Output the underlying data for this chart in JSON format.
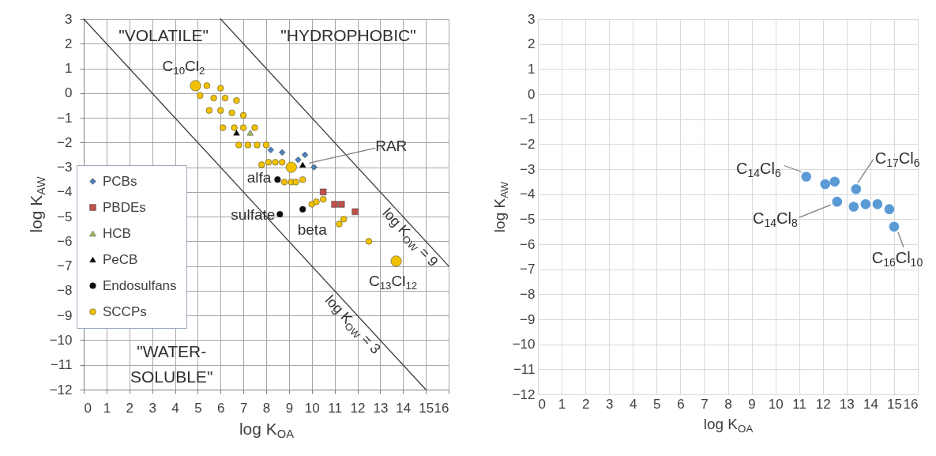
{
  "chart_data": [
    {
      "type": "scatter",
      "xlabel": "log K$_{OA}$",
      "ylabel": "log K$_{AW}$",
      "xlim": [
        0,
        16
      ],
      "ylim": [
        -12,
        3
      ],
      "xticks": [
        0,
        1,
        2,
        3,
        4,
        5,
        6,
        7,
        8,
        9,
        10,
        11,
        12,
        13,
        14,
        15,
        16
      ],
      "yticks": [
        -12,
        -11,
        -10,
        -9,
        -8,
        -7,
        -6,
        -5,
        -4,
        -3,
        -2,
        -1,
        0,
        1,
        2,
        3
      ],
      "grid": true,
      "legend": "left",
      "annotations": [
        "\"VOLATILE\"",
        "\"HYDROPHOBIC\"",
        "\"WATER-\nSOLUBLE\"",
        {
          "text": "C$_{10}$Cl$_{2}$",
          "x": 4.9,
          "y": 0.3
        },
        {
          "text": "RAR",
          "x": 9.6,
          "y": -2.9
        },
        {
          "text": "alfa",
          "x": 8.5,
          "y": -3.5
        },
        {
          "text": "sulfate",
          "x": 8.6,
          "y": -4.9
        },
        {
          "text": "beta",
          "x": 9.6,
          "y": -4.7
        },
        {
          "text": "C$_{13}$Cl$_{12}$",
          "x": 13.7,
          "y": -6.8
        }
      ],
      "series": [
        {
          "type": "line",
          "name": "log K$_{OW}$ = 3",
          "color": "#404040",
          "x": [
            0,
            15
          ],
          "values": [
            3,
            -12
          ]
        },
        {
          "type": "line",
          "name": "log K$_{OW}$ = 9",
          "color": "#404040",
          "x": [
            6,
            16
          ],
          "values": [
            3,
            -7
          ]
        },
        {
          "name": "PCBs",
          "color": "#4f81bd",
          "marker": "diamond",
          "x": [
            8.2,
            8.7,
            9.4,
            9.7,
            10.1
          ],
          "values": [
            -2.3,
            -2.4,
            -2.7,
            -2.5,
            -3.0
          ]
        },
        {
          "name": "PBDEs",
          "color": "#c0504d",
          "marker": "square",
          "x": [
            10.5,
            11.0,
            11.3,
            11.9
          ],
          "values": [
            -4.0,
            -4.5,
            -4.5,
            -4.8
          ]
        },
        {
          "name": "HCB",
          "color": "#9bbb59",
          "marker": "triangle",
          "x": [
            7.3
          ],
          "values": [
            -1.6
          ]
        },
        {
          "name": "PeCB",
          "color": "#000000",
          "marker": "triangle",
          "x": [
            6.7,
            9.6
          ],
          "values": [
            -1.6,
            -2.9
          ]
        },
        {
          "name": "Endosulfans",
          "color": "#0d0d0d",
          "marker": "circle",
          "x": [
            8.5,
            8.6,
            9.6
          ],
          "values": [
            -3.5,
            -4.9,
            -4.7
          ]
        },
        {
          "name": "SCCPs",
          "color": "#f2c200",
          "marker": "circle",
          "x": [
            4.9,
            5.4,
            6.0,
            5.1,
            5.7,
            6.2,
            6.7,
            5.5,
            6.0,
            6.5,
            7.0,
            6.1,
            6.6,
            7.0,
            7.5,
            6.8,
            7.2,
            7.6,
            8.0,
            7.8,
            8.1,
            8.4,
            8.7,
            9.1,
            8.8,
            9.1,
            9.3,
            9.6,
            10.0,
            10.2,
            10.5,
            11.2,
            11.4,
            12.5,
            13.7
          ],
          "values": [
            0.3,
            0.3,
            0.2,
            -0.1,
            -0.2,
            -0.2,
            -0.3,
            -0.7,
            -0.7,
            -0.8,
            -0.9,
            -1.4,
            -1.4,
            -1.4,
            -1.4,
            -2.1,
            -2.1,
            -2.1,
            -2.1,
            -2.9,
            -2.8,
            -2.8,
            -2.8,
            -3.0,
            -3.6,
            -3.6,
            -3.6,
            -3.5,
            -4.5,
            -4.4,
            -4.3,
            -5.3,
            -5.1,
            -6.0,
            -6.8
          ],
          "sizes": [
            1.0,
            0.33,
            0.33,
            0.33,
            0.33,
            0.33,
            0.33,
            0.33,
            0.33,
            0.33,
            0.33,
            0.33,
            0.33,
            0.33,
            0.33,
            0.33,
            0.33,
            0.33,
            0.33,
            0.33,
            0.33,
            0.33,
            0.33,
            1,
            0.33,
            0.33,
            0.33,
            0.33,
            0.33,
            0.33,
            0.33,
            0.33,
            0.33,
            0.33,
            1
          ]
        }
      ]
    },
    {
      "type": "scatter",
      "xlabel": "log K$_{OA}$",
      "ylabel": "log K$_{AW}$",
      "xlim": [
        0,
        16
      ],
      "ylim": [
        -12,
        3
      ],
      "xticks": [
        0,
        1,
        2,
        3,
        4,
        5,
        6,
        7,
        8,
        9,
        10,
        11,
        12,
        13,
        14,
        15,
        16
      ],
      "yticks": [
        -12,
        -11,
        -10,
        -9,
        -8,
        -7,
        -6,
        -5,
        -4,
        -3,
        -2,
        -1,
        0,
        1,
        2,
        3
      ],
      "grid": true,
      "marker": "circle",
      "annotations": [
        {
          "text": "C$_{14}$Cl$_{6}$",
          "x": 11.3,
          "y": -3.3
        },
        {
          "text": "C$_{17}$Cl$_{6}$",
          "x": 13.4,
          "y": -3.8
        },
        {
          "text": "C$_{14}$Cl$_{8}$",
          "x": 12.6,
          "y": -4.3
        },
        {
          "text": "C$_{16}$Cl$_{10}$",
          "x": 15.0,
          "y": -5.3
        }
      ],
      "series": [
        {
          "color": "#5b9bd5",
          "x": [
            11.3,
            12.1,
            12.5,
            13.4,
            12.6,
            13.3,
            13.8,
            14.3,
            14.8,
            15.0
          ],
          "values": [
            -3.3,
            -3.6,
            -3.5,
            -3.8,
            -4.3,
            -4.5,
            -4.4,
            -4.4,
            -4.6,
            -5.3
          ]
        }
      ]
    }
  ]
}
